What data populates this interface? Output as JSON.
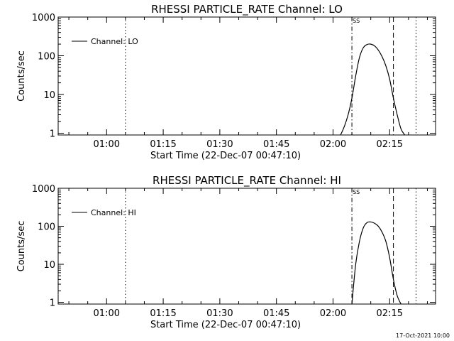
{
  "footer_timestamp": "17-Oct-2021 10:00",
  "chart_data": [
    {
      "type": "line",
      "title": "RHESSI PARTICLE_RATE Channel: LO",
      "xlabel": "Start Time (22-Dec-07 00:47:10)",
      "ylabel": "Counts/sec",
      "y_scale": "log",
      "xlim": [
        "00:47:10",
        "02:27:10"
      ],
      "ylim": [
        0.9,
        1000
      ],
      "x_ticks": [
        "01:00",
        "01:15",
        "01:30",
        "01:45",
        "02:00",
        "02:15"
      ],
      "y_ticks": [
        "1",
        "10",
        "100",
        "1000"
      ],
      "legend": {
        "placement": "top-left",
        "entries": [
          "Channel: LO"
        ]
      },
      "series": [
        {
          "name": "Channel: LO",
          "x": [
            "02:02",
            "02:03",
            "02:04",
            "02:05",
            "02:06",
            "02:07",
            "02:08",
            "02:09",
            "02:10",
            "02:11",
            "02:12",
            "02:13",
            "02:14",
            "02:15",
            "02:16",
            "02:17",
            "02:18",
            "02:19"
          ],
          "y": [
            0.9,
            1.5,
            3,
            8,
            30,
            90,
            160,
            195,
            200,
            180,
            140,
            95,
            55,
            25,
            8,
            3,
            1.3,
            0.9
          ]
        }
      ],
      "markers": [
        {
          "x": "01:05",
          "style": "dotted"
        },
        {
          "x": "02:05",
          "style": "dash-dot",
          "label": "SS"
        },
        {
          "x": "02:16",
          "style": "dashed"
        },
        {
          "x": "02:22",
          "style": "dotted"
        }
      ]
    },
    {
      "type": "line",
      "title": "RHESSI PARTICLE_RATE Channel: HI",
      "xlabel": "Start Time (22-Dec-07 00:47:10)",
      "ylabel": "Counts/sec",
      "y_scale": "log",
      "xlim": [
        "00:47:10",
        "02:27:10"
      ],
      "ylim": [
        0.9,
        1000
      ],
      "x_ticks": [
        "01:00",
        "01:15",
        "01:30",
        "01:45",
        "02:00",
        "02:15"
      ],
      "y_ticks": [
        "1",
        "10",
        "100",
        "1000"
      ],
      "legend": {
        "placement": "top-left",
        "entries": [
          "Channel: HI"
        ]
      },
      "series": [
        {
          "name": "Channel: HI",
          "x": [
            "02:05",
            "02:06",
            "02:07",
            "02:08",
            "02:09",
            "02:10",
            "02:11",
            "02:12",
            "02:13",
            "02:14",
            "02:15",
            "02:16",
            "02:17",
            "02:18"
          ],
          "y": [
            0.9,
            10,
            40,
            90,
            125,
            130,
            120,
            100,
            70,
            40,
            15,
            4,
            1.5,
            0.9
          ]
        }
      ],
      "markers": [
        {
          "x": "01:05",
          "style": "dotted"
        },
        {
          "x": "02:05",
          "style": "dash-dot",
          "label": "SS"
        },
        {
          "x": "02:16",
          "style": "dashed"
        },
        {
          "x": "02:22",
          "style": "dotted"
        }
      ]
    }
  ]
}
